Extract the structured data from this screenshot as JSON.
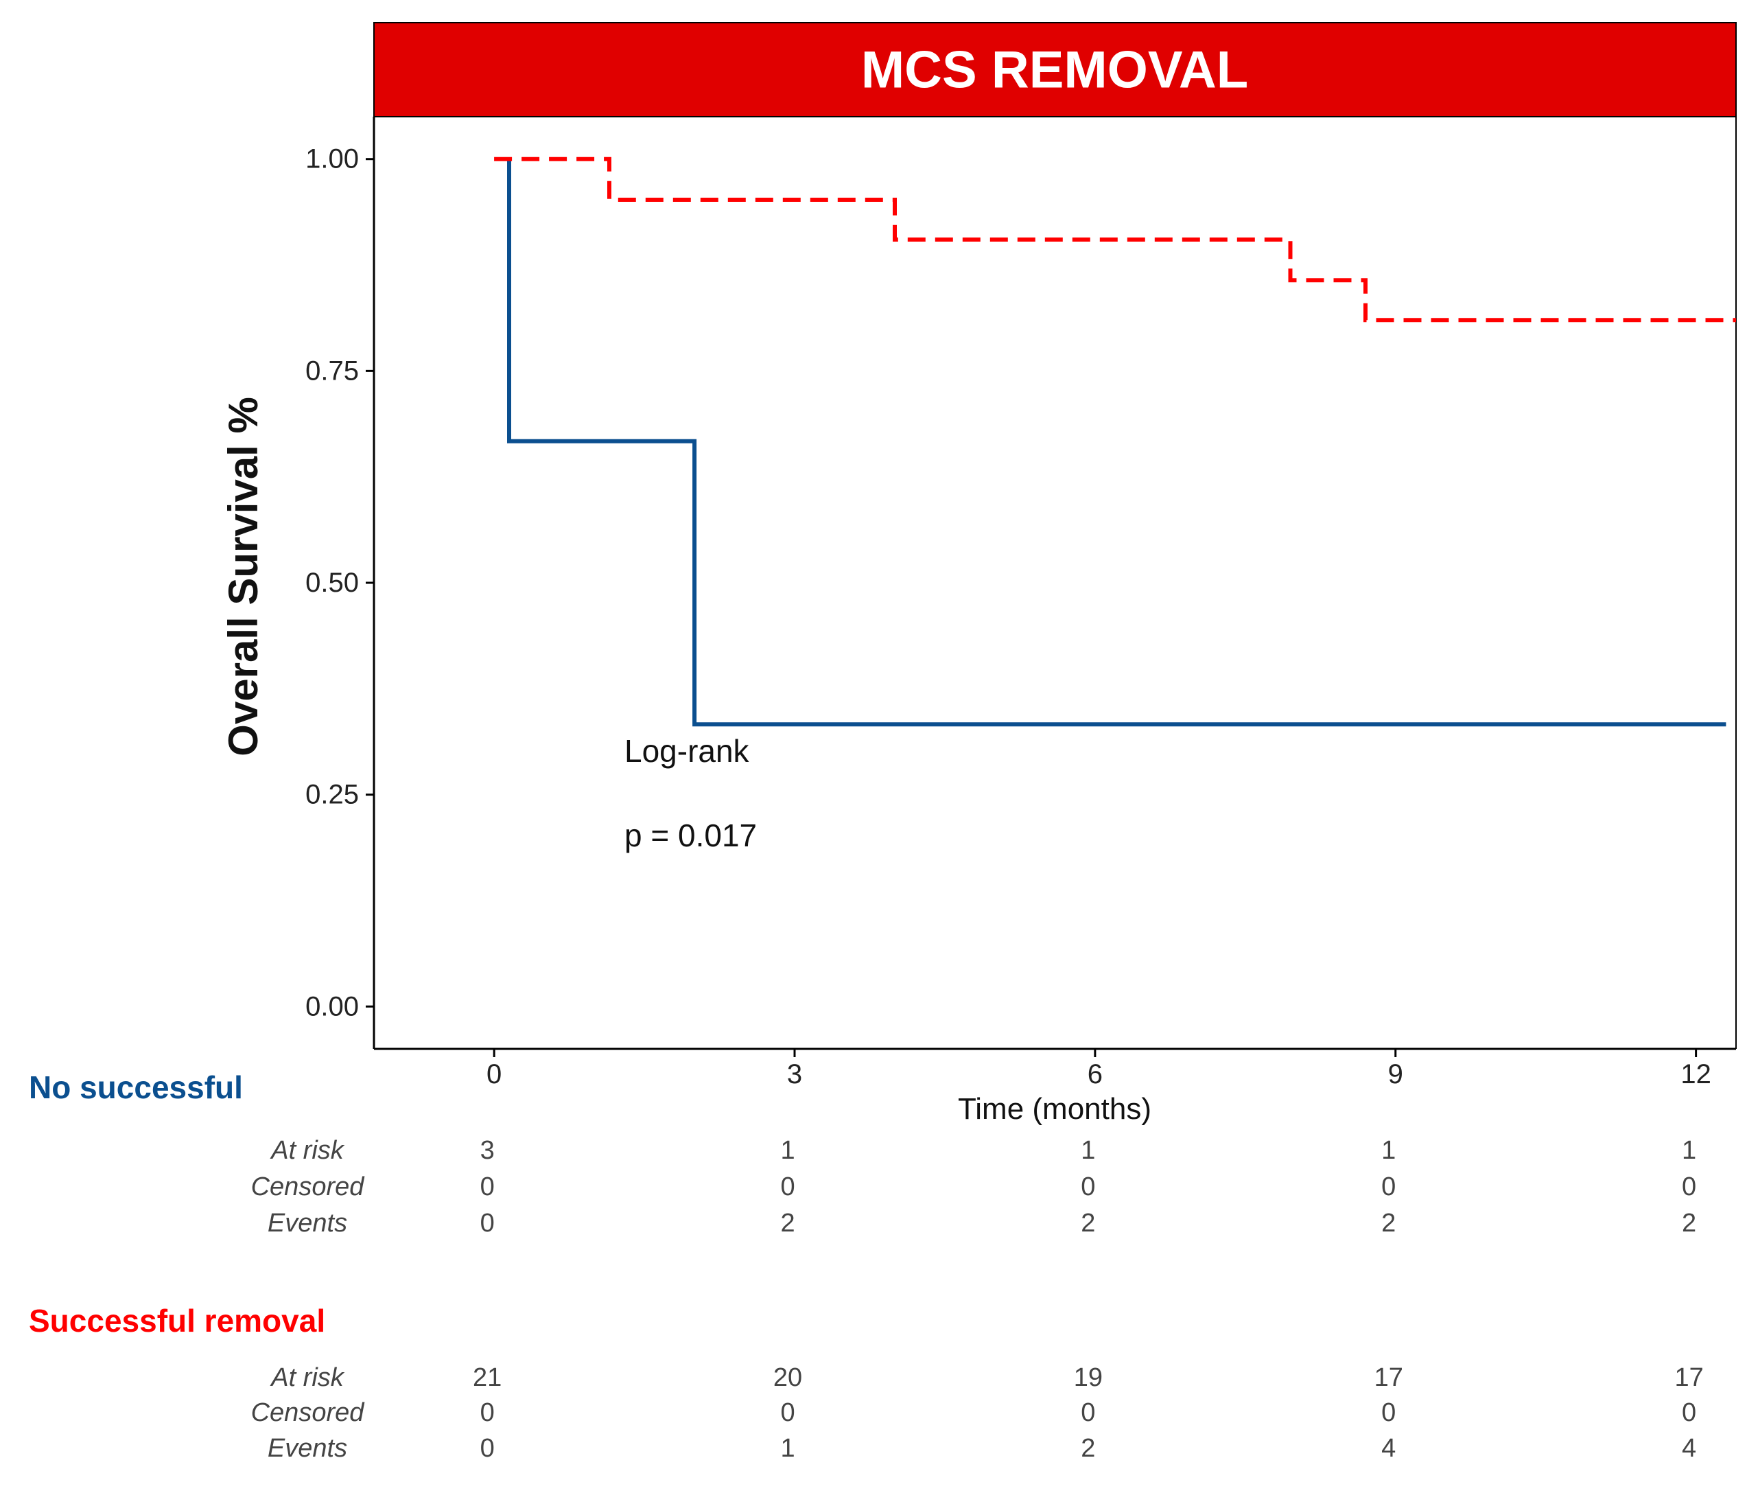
{
  "chart_data": {
    "type": "line",
    "title": "MCS REMOVAL",
    "xlabel": "Time (months)",
    "ylabel": "Overall Survival %",
    "xlim": [
      -1.2,
      12.4
    ],
    "ylim": [
      -0.05,
      1.05
    ],
    "xticks": [
      0,
      3,
      6,
      9,
      12
    ],
    "yticks": [
      0.0,
      0.25,
      0.5,
      0.75,
      1.0
    ],
    "ytick_labels": [
      "0.00",
      "0.25",
      "0.50",
      "0.75",
      "1.00"
    ],
    "series": [
      {
        "key": "no_successful",
        "color": "#0b4f8f",
        "dashed": false,
        "steps": [
          [
            0.15,
            1.0
          ],
          [
            0.15,
            0.667
          ],
          [
            2.0,
            0.667
          ],
          [
            2.0,
            0.333
          ],
          [
            12.3,
            0.333
          ]
        ]
      },
      {
        "key": "successful_removal",
        "color": "#ff0000",
        "dashed": true,
        "steps": [
          [
            0.0,
            1.0
          ],
          [
            1.15,
            1.0
          ],
          [
            1.15,
            0.952
          ],
          [
            4.0,
            0.952
          ],
          [
            4.0,
            0.905
          ],
          [
            7.95,
            0.905
          ],
          [
            7.95,
            0.857
          ],
          [
            8.7,
            0.857
          ],
          [
            8.7,
            0.81
          ],
          [
            12.4,
            0.81
          ]
        ]
      }
    ],
    "annotations": [
      "Log-rank",
      "p = 0.017"
    ],
    "grid": false,
    "legend": "none"
  },
  "colors": {
    "banner": "#e00000",
    "blue": "#0b4f8f",
    "red": "#ff0000"
  },
  "risk_table": {
    "row_labels": [
      "At risk",
      "Censored",
      "Events"
    ],
    "groups": [
      {
        "title": "No successful",
        "color": "#0b4f8f",
        "rows": [
          [
            "3",
            "1",
            "1",
            "1",
            "1"
          ],
          [
            "0",
            "0",
            "0",
            "0",
            "0"
          ],
          [
            "0",
            "2",
            "2",
            "2",
            "2"
          ]
        ]
      },
      {
        "title": "Successful removal",
        "color": "#ff0000",
        "rows": [
          [
            "21",
            "20",
            "19",
            "17",
            "17"
          ],
          [
            "0",
            "0",
            "0",
            "0",
            "0"
          ],
          [
            "0",
            "1",
            "2",
            "4",
            "4"
          ]
        ]
      }
    ]
  }
}
